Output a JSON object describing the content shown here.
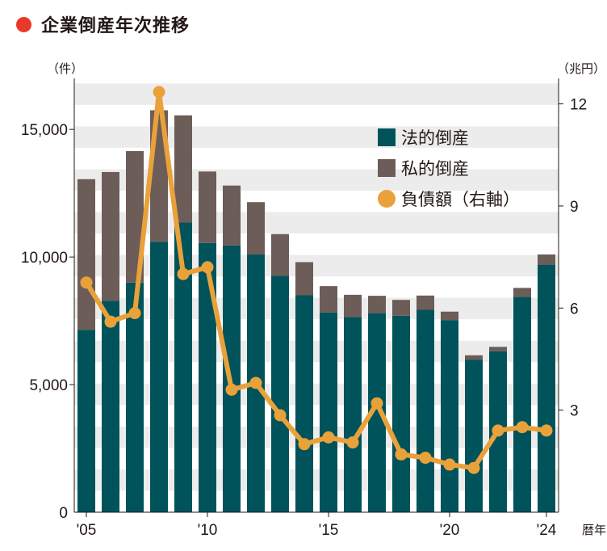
{
  "title": "企業倒産年次推移",
  "colors": {
    "title_dot": "#e8382a",
    "corporate": "#00535a",
    "individual": "#6d5d58",
    "liabilities": "#e9a13a",
    "band": "#ececec"
  },
  "chart_data": {
    "type": "bar",
    "stacked": true,
    "categories": [
      "2005",
      "2006",
      "2007",
      "2008",
      "2009",
      "2010",
      "2011",
      "2012",
      "2013",
      "2014",
      "2015",
      "2016",
      "2017",
      "2018",
      "2019",
      "2020",
      "2021",
      "2022",
      "2023",
      "2024"
    ],
    "x_tick_labels": [
      "'05",
      "'10",
      "'15",
      "'20",
      "'24"
    ],
    "x_unit": "暦年",
    "left_axis": {
      "unit": "（件）",
      "ylim": [
        0,
        17000
      ],
      "ticks": [
        0,
        5000,
        10000,
        15000
      ],
      "tick_labels": [
        "0",
        "5,000",
        "10,000",
        "15,000"
      ]
    },
    "right_axis": {
      "unit": "（兆円）",
      "ylim": [
        0,
        12.75
      ],
      "ticks": [
        3,
        6,
        9,
        12
      ],
      "tick_labels": [
        "3",
        "6",
        "9",
        "12"
      ]
    },
    "series": [
      {
        "name": "法的倒産",
        "axis": "left",
        "type": "bar",
        "values": [
          7150,
          8280,
          9000,
          10600,
          11350,
          10550,
          10450,
          10100,
          9270,
          8500,
          7830,
          7650,
          7800,
          7700,
          7930,
          7530,
          5980,
          6310,
          8440,
          9700
        ]
      },
      {
        "name": "私的倒産",
        "axis": "left",
        "type": "bar",
        "values": [
          5900,
          5050,
          5150,
          5150,
          4200,
          2800,
          2350,
          2050,
          1630,
          1300,
          1030,
          870,
          680,
          620,
          560,
          330,
          170,
          170,
          350,
          400
        ]
      },
      {
        "name": "負債額（右軸）",
        "axis": "right",
        "type": "line",
        "values": [
          6.75,
          5.6,
          5.85,
          12.35,
          7.0,
          7.2,
          3.6,
          3.8,
          2.85,
          2.0,
          2.2,
          2.05,
          3.2,
          1.7,
          1.6,
          1.4,
          1.3,
          2.4,
          2.5,
          2.4
        ]
      }
    ],
    "grid": "horizontal bands",
    "legend_position": "top-right"
  }
}
